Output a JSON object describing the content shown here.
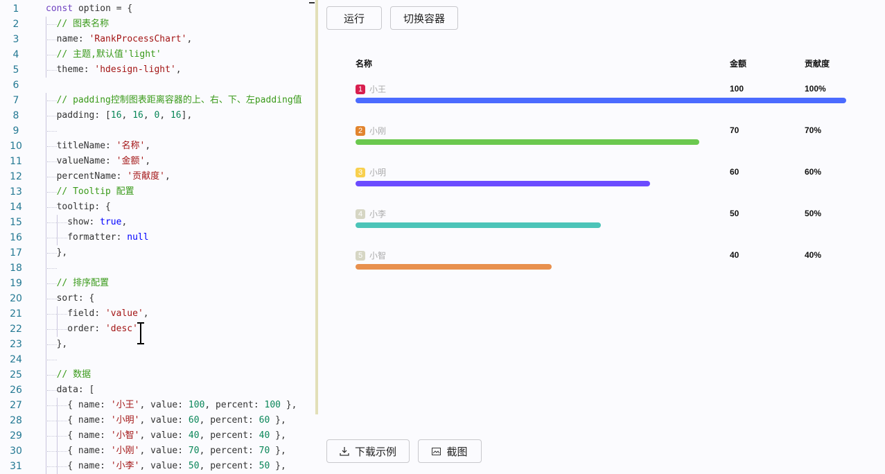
{
  "editor": {
    "lines": [
      {
        "n": "1",
        "indent": 0,
        "tokens": [
          [
            "kw",
            "const"
          ],
          [
            "txt",
            " option = {"
          ]
        ]
      },
      {
        "n": "2",
        "indent": 1,
        "tokens": [
          [
            "cm",
            "// 图表名称"
          ]
        ]
      },
      {
        "n": "3",
        "indent": 1,
        "tokens": [
          [
            "txt",
            "name: "
          ],
          [
            "str",
            "'RankProcessChart'"
          ],
          [
            "txt",
            ","
          ]
        ]
      },
      {
        "n": "4",
        "indent": 1,
        "tokens": [
          [
            "cm",
            "// 主题,默认值'light'"
          ]
        ]
      },
      {
        "n": "5",
        "indent": 1,
        "tokens": [
          [
            "txt",
            "theme: "
          ],
          [
            "str",
            "'hdesign-light'"
          ],
          [
            "txt",
            ","
          ]
        ]
      },
      {
        "n": "6",
        "indent": 0,
        "tokens": []
      },
      {
        "n": "7",
        "indent": 1,
        "tokens": [
          [
            "cm",
            "// padding控制图表距离容器的上、右、下、左padding值"
          ]
        ]
      },
      {
        "n": "8",
        "indent": 1,
        "tokens": [
          [
            "txt",
            "padding: ["
          ],
          [
            "num",
            "16"
          ],
          [
            "txt",
            ", "
          ],
          [
            "num",
            "16"
          ],
          [
            "txt",
            ", "
          ],
          [
            "num",
            "0"
          ],
          [
            "txt",
            ", "
          ],
          [
            "num",
            "16"
          ],
          [
            "txt",
            "],"
          ]
        ]
      },
      {
        "n": "9",
        "indent": 1,
        "tokens": []
      },
      {
        "n": "10",
        "indent": 1,
        "tokens": [
          [
            "txt",
            "titleName: "
          ],
          [
            "str",
            "'名称'"
          ],
          [
            "txt",
            ","
          ]
        ]
      },
      {
        "n": "11",
        "indent": 1,
        "tokens": [
          [
            "txt",
            "valueName: "
          ],
          [
            "str",
            "'金额'"
          ],
          [
            "txt",
            ","
          ]
        ]
      },
      {
        "n": "12",
        "indent": 1,
        "tokens": [
          [
            "txt",
            "percentName: "
          ],
          [
            "str",
            "'贡献度'"
          ],
          [
            "txt",
            ","
          ]
        ]
      },
      {
        "n": "13",
        "indent": 1,
        "tokens": [
          [
            "cm",
            "// Tooltip 配置"
          ]
        ]
      },
      {
        "n": "14",
        "indent": 1,
        "tokens": [
          [
            "txt",
            "tooltip: {"
          ]
        ]
      },
      {
        "n": "15",
        "indent": 2,
        "tokens": [
          [
            "txt",
            "show: "
          ],
          [
            "bool",
            "true"
          ],
          [
            "txt",
            ","
          ]
        ]
      },
      {
        "n": "16",
        "indent": 2,
        "tokens": [
          [
            "txt",
            "formatter: "
          ],
          [
            "bool",
            "null"
          ]
        ]
      },
      {
        "n": "17",
        "indent": 1,
        "tokens": [
          [
            "txt",
            "},"
          ]
        ]
      },
      {
        "n": "18",
        "indent": 1,
        "tokens": []
      },
      {
        "n": "19",
        "indent": 1,
        "tokens": [
          [
            "cm",
            "// 排序配置"
          ]
        ]
      },
      {
        "n": "20",
        "indent": 1,
        "tokens": [
          [
            "txt",
            "sort: {"
          ]
        ]
      },
      {
        "n": "21",
        "indent": 2,
        "tokens": [
          [
            "txt",
            "field: "
          ],
          [
            "str",
            "'value'"
          ],
          [
            "txt",
            ","
          ]
        ]
      },
      {
        "n": "22",
        "indent": 2,
        "tokens": [
          [
            "txt",
            "order: "
          ],
          [
            "str",
            "'desc'"
          ]
        ]
      },
      {
        "n": "23",
        "indent": 1,
        "tokens": [
          [
            "txt",
            "},"
          ]
        ]
      },
      {
        "n": "24",
        "indent": 1,
        "tokens": []
      },
      {
        "n": "25",
        "indent": 1,
        "tokens": [
          [
            "cm",
            "// 数据"
          ]
        ]
      },
      {
        "n": "26",
        "indent": 1,
        "tokens": [
          [
            "txt",
            "data: ["
          ]
        ]
      },
      {
        "n": "27",
        "indent": 2,
        "tokens": [
          [
            "txt",
            "{ name: "
          ],
          [
            "str",
            "'小王'"
          ],
          [
            "txt",
            ", value: "
          ],
          [
            "num",
            "100"
          ],
          [
            "txt",
            ", percent: "
          ],
          [
            "num",
            "100"
          ],
          [
            "txt",
            " },"
          ]
        ]
      },
      {
        "n": "28",
        "indent": 2,
        "tokens": [
          [
            "txt",
            "{ name: "
          ],
          [
            "str",
            "'小明'"
          ],
          [
            "txt",
            ", value: "
          ],
          [
            "num",
            "60"
          ],
          [
            "txt",
            ", percent: "
          ],
          [
            "num",
            "60"
          ],
          [
            "txt",
            " },"
          ]
        ]
      },
      {
        "n": "29",
        "indent": 2,
        "tokens": [
          [
            "txt",
            "{ name: "
          ],
          [
            "str",
            "'小智'"
          ],
          [
            "txt",
            ", value: "
          ],
          [
            "num",
            "40"
          ],
          [
            "txt",
            ", percent: "
          ],
          [
            "num",
            "40"
          ],
          [
            "txt",
            " },"
          ]
        ]
      },
      {
        "n": "30",
        "indent": 2,
        "tokens": [
          [
            "txt",
            "{ name: "
          ],
          [
            "str",
            "'小刚'"
          ],
          [
            "txt",
            ", value: "
          ],
          [
            "num",
            "70"
          ],
          [
            "txt",
            ", percent: "
          ],
          [
            "num",
            "70"
          ],
          [
            "txt",
            " },"
          ]
        ]
      },
      {
        "n": "31",
        "indent": 2,
        "tokens": [
          [
            "txt",
            "{ name: "
          ],
          [
            "str",
            "'小李'"
          ],
          [
            "txt",
            ", value: "
          ],
          [
            "num",
            "50"
          ],
          [
            "txt",
            ", percent: "
          ],
          [
            "num",
            "50"
          ],
          [
            "txt",
            " },"
          ]
        ]
      }
    ]
  },
  "toolbar": {
    "run_label": "运行",
    "switch_label": "切换容器"
  },
  "footer": {
    "download_label": "下载示例",
    "screenshot_label": "截图"
  },
  "chart": {
    "title_name": "名称",
    "value_name": "金额",
    "percent_name": "贡献度",
    "rows": [
      {
        "rank": "1",
        "name": "小王",
        "value": "100",
        "percent": "100%",
        "fraction": 1.0,
        "badge_color": "#d81e4f",
        "bar_color": "#4b6bff"
      },
      {
        "rank": "2",
        "name": "小刚",
        "value": "70",
        "percent": "70%",
        "fraction": 0.7,
        "badge_color": "#e2842e",
        "bar_color": "#6bc84f"
      },
      {
        "rank": "3",
        "name": "小明",
        "value": "60",
        "percent": "60%",
        "fraction": 0.6,
        "badge_color": "#f8d04e",
        "bar_color": "#6b4bff"
      },
      {
        "rank": "4",
        "name": "小李",
        "value": "50",
        "percent": "50%",
        "fraction": 0.5,
        "badge_color": "#d6d6c4",
        "bar_color": "#4cc4b8"
      },
      {
        "rank": "5",
        "name": "小智",
        "value": "40",
        "percent": "40%",
        "fraction": 0.4,
        "badge_color": "#d6d6c4",
        "bar_color": "#e8904e"
      }
    ]
  }
}
